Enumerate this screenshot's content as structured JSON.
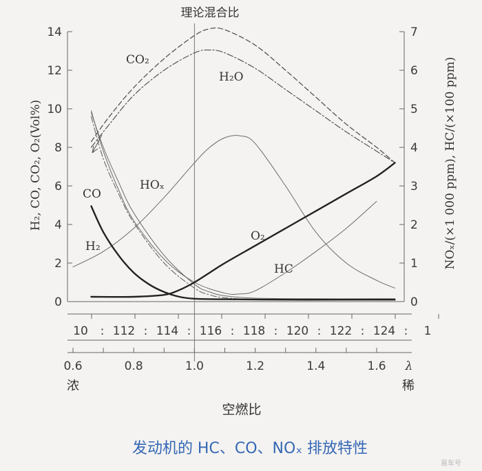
{
  "caption": "发动机的 HC、CO、NOₓ 排放特性",
  "watermark": "易车号",
  "chart_data": {
    "type": "line",
    "top_label": "理论混合比",
    "y_left_label": "H₂, CO, CO₂, O₂(Vol%)",
    "y_right_label": "NOₓ/(×1 000 ppm), HC/(×100 ppm)",
    "x_label": "空燃比",
    "left_end_label": "浓",
    "right_end_label": "稀",
    "lambda_symbol": "λ",
    "y_left_ticks": [
      "0",
      "2",
      "4",
      "6",
      "8",
      "10",
      "12",
      "14"
    ],
    "y_right_ticks": [
      "0",
      "1",
      "2",
      "3",
      "4",
      "5",
      "6",
      "7"
    ],
    "afr_ticks": [
      "10",
      ":",
      "112",
      ":",
      "114",
      ":",
      "116",
      ":",
      "118",
      ":",
      "120",
      ":",
      "122",
      ":",
      "124",
      ":",
      "1"
    ],
    "lambda_ticks": [
      "0.6",
      "0.8",
      "1.0",
      "1.2",
      "1.4",
      "1.6"
    ],
    "y_left_range": [
      0,
      14
    ],
    "y_right_range": [
      0,
      7
    ],
    "x_range_lambda": [
      0.6,
      1.69
    ],
    "stoich_lambda": 1.0,
    "series": [
      {
        "name": "CO₂",
        "axis": "left",
        "dash": "dashed",
        "color": "#555555",
        "width": 1.3,
        "x": [
          0.66,
          0.72,
          0.8,
          0.9,
          1.0,
          1.05,
          1.1,
          1.2,
          1.3,
          1.4,
          1.5,
          1.6,
          1.66
        ],
        "y": [
          8.3,
          9.6,
          11.1,
          12.6,
          13.8,
          14.15,
          14.1,
          13.3,
          12.0,
          10.6,
          9.2,
          8.0,
          7.2
        ]
      },
      {
        "name": "H₂O",
        "axis": "left",
        "dash": "dashdot",
        "color": "#555555",
        "width": 1.2,
        "x": [
          0.66,
          0.72,
          0.8,
          0.9,
          1.0,
          1.05,
          1.1,
          1.2,
          1.3,
          1.4,
          1.5,
          1.6,
          1.66
        ],
        "y": [
          8.0,
          9.2,
          10.7,
          12.0,
          12.9,
          13.05,
          12.9,
          12.1,
          11.0,
          9.9,
          8.8,
          7.8,
          7.2
        ]
      },
      {
        "name": "NOₓ",
        "axis": "right",
        "dash": "solid",
        "color": "#6a6a6a",
        "width": 1.0,
        "x": [
          0.6,
          0.7,
          0.8,
          0.9,
          1.0,
          1.05,
          1.1,
          1.15,
          1.2,
          1.3,
          1.4,
          1.5,
          1.6,
          1.66
        ],
        "y": [
          0.9,
          1.3,
          1.9,
          2.7,
          3.6,
          4.0,
          4.25,
          4.3,
          4.1,
          3.0,
          1.8,
          1.0,
          0.55,
          0.35
        ]
      },
      {
        "name": "HC",
        "axis": "right",
        "dash": "solid",
        "color": "#6a6a6a",
        "width": 1.0,
        "x": [
          0.66,
          0.7,
          0.75,
          0.8,
          0.9,
          1.0,
          1.1,
          1.15,
          1.2,
          1.3,
          1.4,
          1.5,
          1.6
        ],
        "y": [
          4.95,
          3.9,
          2.9,
          2.1,
          1.1,
          0.5,
          0.22,
          0.2,
          0.28,
          0.75,
          1.3,
          1.9,
          2.6
        ]
      },
      {
        "name": "CO",
        "axis": "left",
        "dash": "solid",
        "color": "#6a6a6a",
        "width": 1.0,
        "x": [
          0.66,
          0.7,
          0.75,
          0.8,
          0.9,
          1.0,
          1.05,
          1.1,
          1.2,
          1.4,
          1.6,
          1.66
        ],
        "y": [
          9.8,
          8.0,
          6.2,
          4.6,
          2.4,
          0.9,
          0.5,
          0.3,
          0.18,
          0.15,
          0.15,
          0.15
        ]
      },
      {
        "name": "H₂",
        "axis": "left",
        "dash": "dashdot",
        "color": "#5a5a5a",
        "width": 1.0,
        "x": [
          0.66,
          0.7,
          0.75,
          0.8,
          0.9,
          1.0,
          1.05,
          1.1,
          1.2,
          1.4,
          1.6,
          1.66
        ],
        "y": [
          9.6,
          7.4,
          5.6,
          4.1,
          2.0,
          0.7,
          0.35,
          0.2,
          0.12,
          0.1,
          0.1,
          0.1
        ]
      },
      {
        "name": "CO (rich)",
        "axis": "left",
        "dash": "solid",
        "color": "#222222",
        "width": 2.4,
        "x": [
          0.66,
          0.7,
          0.75,
          0.8,
          0.85,
          0.9,
          0.95,
          1.0,
          1.1,
          1.3,
          1.5,
          1.66
        ],
        "y": [
          4.95,
          3.6,
          2.4,
          1.5,
          0.9,
          0.5,
          0.25,
          0.15,
          0.12,
          0.1,
          0.1,
          0.1
        ]
      },
      {
        "name": "O₂",
        "axis": "left",
        "dash": "solid",
        "color": "#222222",
        "width": 2.4,
        "x": [
          0.66,
          0.8,
          0.9,
          0.95,
          1.0,
          1.05,
          1.1,
          1.2,
          1.3,
          1.4,
          1.5,
          1.6,
          1.66
        ],
        "y": [
          0.25,
          0.25,
          0.35,
          0.6,
          1.0,
          1.5,
          2.0,
          2.9,
          3.8,
          4.7,
          5.6,
          6.5,
          7.2
        ]
      }
    ],
    "labels": {
      "co2": "CO₂",
      "h2o": "H₂O",
      "hox": "HOₓ",
      "co": "CO",
      "h2": "H₂",
      "o2": "O₂",
      "hc": "HC"
    }
  }
}
